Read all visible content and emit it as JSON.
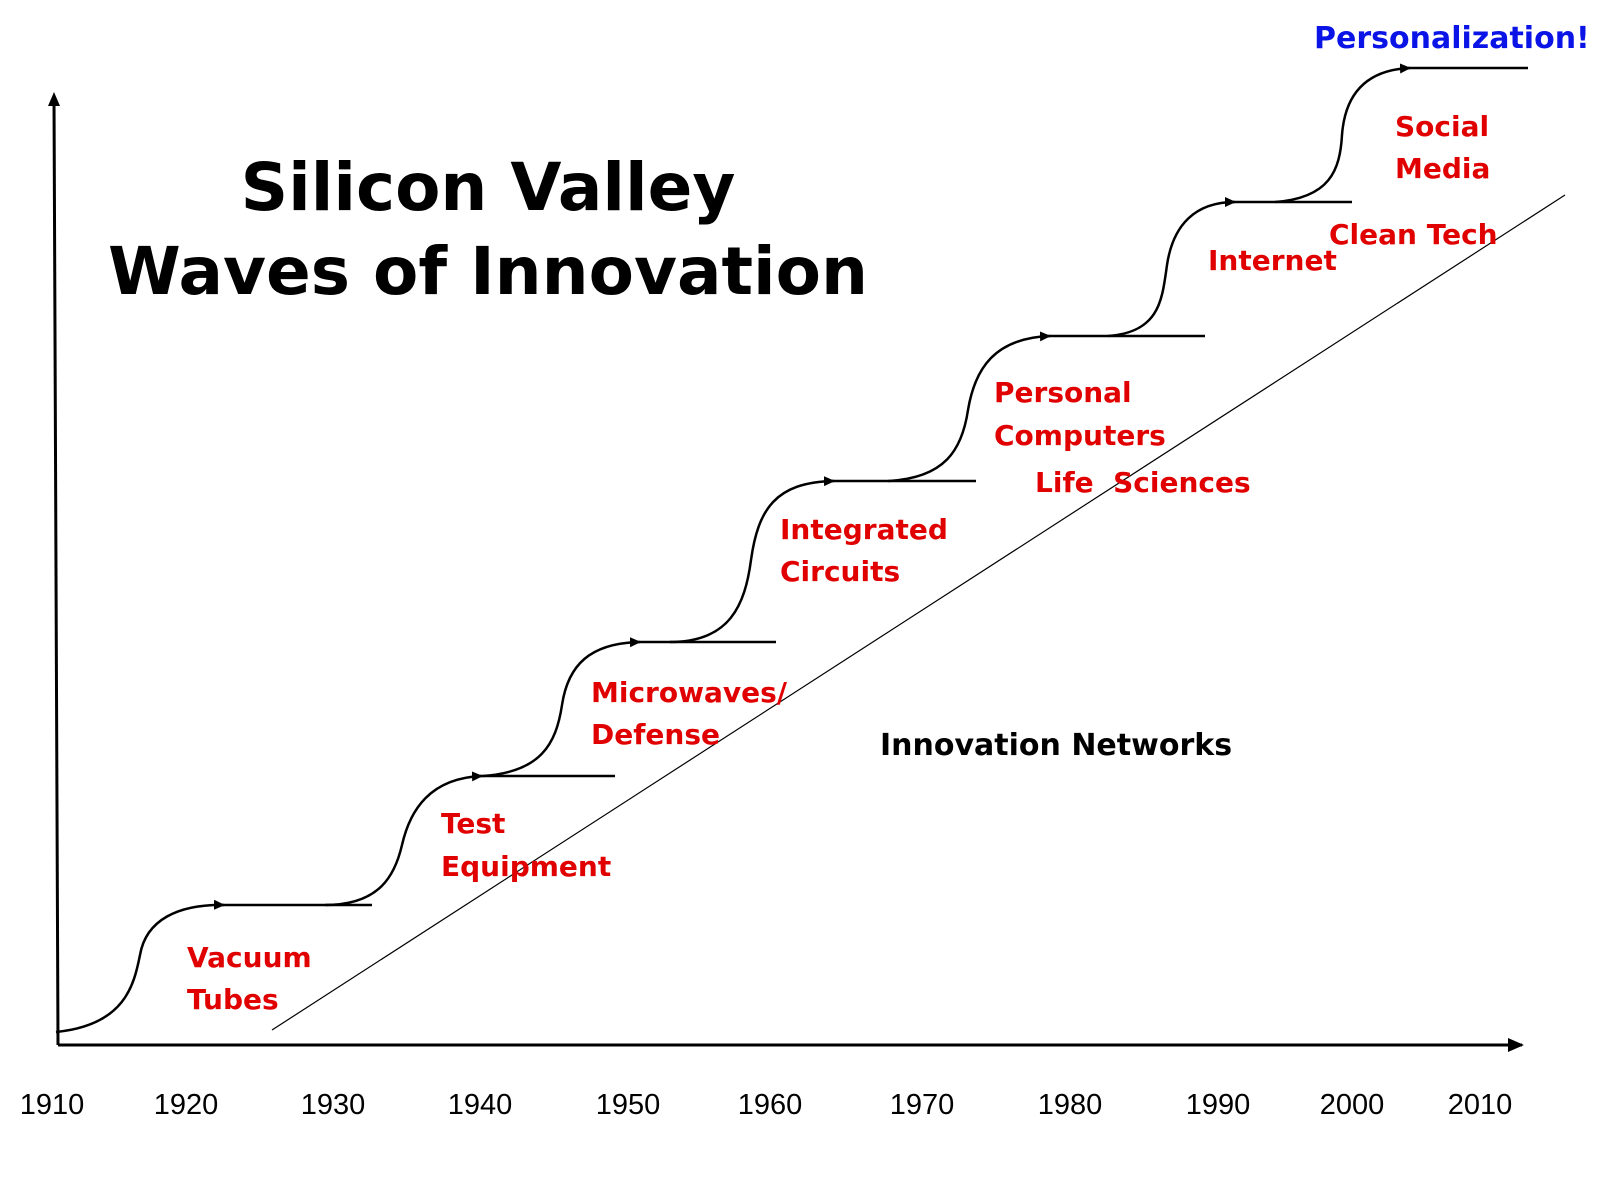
{
  "title": {
    "line1": "Silicon Valley",
    "line2": "Waves of Innovation"
  },
  "colors": {
    "wave_label": "#e00000",
    "personalization": "#0a14e6",
    "line": "#000000"
  },
  "waves": [
    {
      "id": "vacuum-tubes",
      "lines": [
        "Vacuum",
        "Tubes"
      ]
    },
    {
      "id": "test-equipment",
      "lines": [
        "Test",
        "Equipment"
      ]
    },
    {
      "id": "microwaves-defense",
      "lines": [
        "Microwaves/",
        "Defense"
      ]
    },
    {
      "id": "integrated-circuits",
      "lines": [
        "Integrated",
        "Circuits"
      ]
    },
    {
      "id": "personal-computers",
      "lines": [
        "Personal",
        "Computers"
      ]
    },
    {
      "id": "life-sciences",
      "lines": [
        "Life  Sciences"
      ]
    },
    {
      "id": "internet",
      "lines": [
        "Internet"
      ]
    },
    {
      "id": "clean-tech",
      "lines": [
        "Clean Tech"
      ]
    },
    {
      "id": "social-media",
      "lines": [
        "Social",
        "Media"
      ]
    }
  ],
  "network_label": "Innovation Networks",
  "top_label": "Personalization!",
  "x_axis_years": [
    "1910",
    "1920",
    "1930",
    "1940",
    "1950",
    "1960",
    "1970",
    "1980",
    "1990",
    "2000",
    "2010"
  ]
}
